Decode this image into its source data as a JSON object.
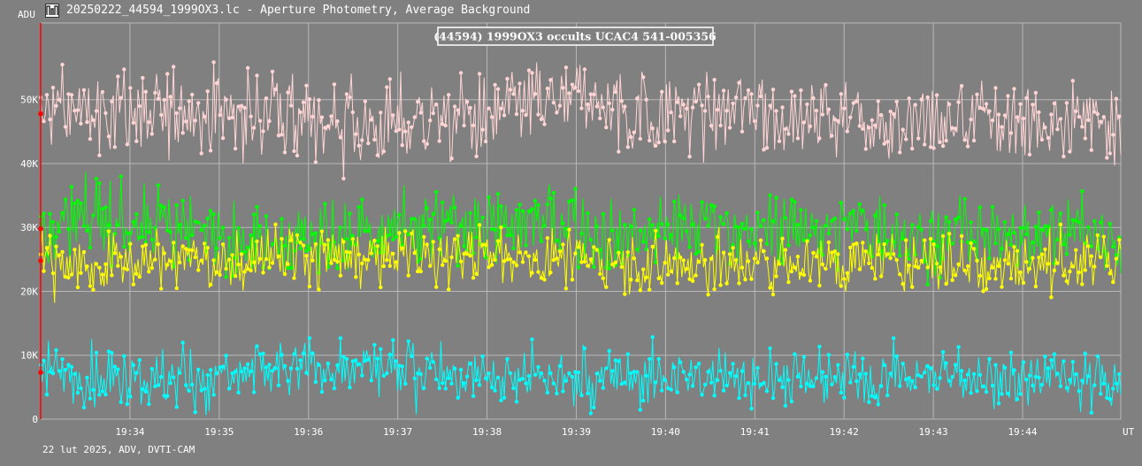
{
  "window": {
    "title": "20250222_44594_1999OX3.lc - Aperture Photometry, Average Background",
    "icon": "lightcurve-app-icon"
  },
  "footer": {
    "info": "22 lut 2025, ADV, DVTI-CAM"
  },
  "chart_data": {
    "type": "line",
    "title": "(44594) 1999OX3 occults UCAC4 541-005356",
    "xlabel": "UT",
    "ylabel": "ADU",
    "x_range_min": [
      33.0,
      45.1
    ],
    "ylim": [
      0,
      62000
    ],
    "y_ticks": [
      0,
      10000,
      20000,
      30000,
      40000,
      50000
    ],
    "y_tick_labels": [
      "0",
      "10K",
      "20K",
      "30K",
      "40K",
      "50K"
    ],
    "x_ticks": [
      34,
      35,
      36,
      37,
      38,
      39,
      40,
      41,
      42,
      43,
      44
    ],
    "x_tick_labels": [
      "19:34",
      "19:35",
      "19:36",
      "19:37",
      "19:38",
      "19:39",
      "19:40",
      "19:41",
      "19:42",
      "19:43",
      "19:44"
    ],
    "grid": true,
    "samples_per_series": 700,
    "series": [
      {
        "color": "#FFD4D4",
        "mean": 47800,
        "noise": 3300,
        "visible_min": 36300,
        "visible_max": 57500
      },
      {
        "color": "#00FF00",
        "mean": 29800,
        "noise": 2800,
        "visible_min": 17500,
        "visible_max": 39500
      },
      {
        "color": "#FFFF00",
        "mean": 24800,
        "noise": 2300,
        "visible_min": 15000,
        "visible_max": 30500
      },
      {
        "color": "#00FFFF",
        "mean": 7300,
        "noise": 2300,
        "visible_min": 600,
        "visible_max": 15000
      }
    ],
    "marker_color": "#FF0000"
  },
  "colors": {
    "background": "#808080",
    "grid": "#B8B8B8",
    "axis_left": "#FF0000",
    "text": "#FFFFFF"
  }
}
